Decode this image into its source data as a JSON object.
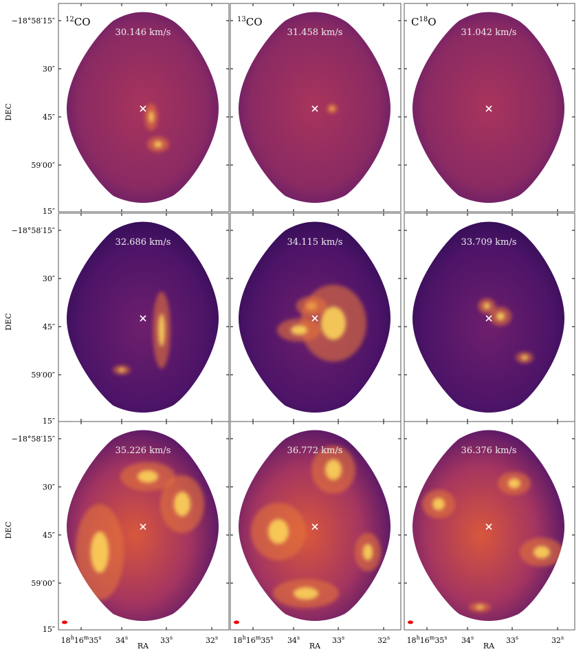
{
  "panels": {
    "molecules": [
      {
        "sup": "12",
        "text": "CO"
      },
      {
        "sup": "13",
        "text": "CO"
      },
      {
        "text": "C",
        "sup": "18",
        "after": "O"
      }
    ],
    "velocities": [
      [
        "30.146 km/s",
        "31.458 km/s",
        "31.042 km/s"
      ],
      [
        "32.686 km/s",
        "34.115 km/s",
        "33.709 km/s"
      ],
      [
        "35.226 km/s",
        "36.772 km/s",
        "36.376 km/s"
      ]
    ]
  },
  "axes": {
    "y_label": "DEC",
    "x_label": "RA",
    "y_ticks": [
      "−18°58′15″",
      "30″",
      "45″",
      "59′00″",
      "15″"
    ],
    "x_ticks": [
      [
        "18",
        "h",
        "16",
        "m",
        "35",
        "s"
      ],
      [
        "34",
        "s"
      ],
      [
        "33",
        "s"
      ],
      [
        "32",
        "s"
      ]
    ]
  }
}
